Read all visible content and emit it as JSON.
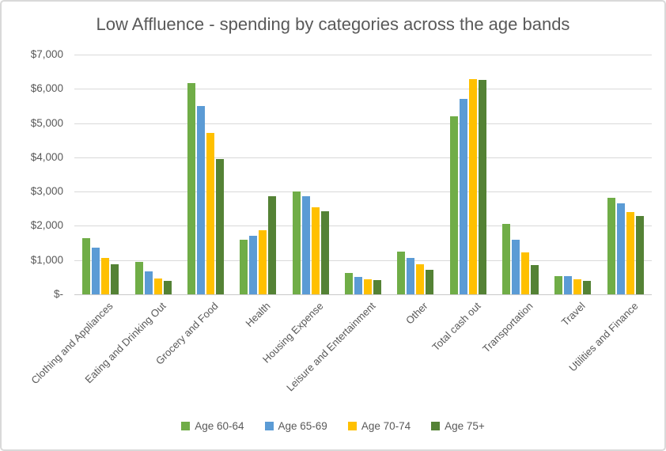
{
  "chart_data": {
    "type": "bar",
    "title": "Low Affluence - spending by categories across the age bands",
    "xlabel": "",
    "ylabel": "",
    "ylim": [
      0,
      7000
    ],
    "grid": "horizontal",
    "legend_position": "bottom",
    "yticks": [
      {
        "label": "$7,000",
        "value": 7000
      },
      {
        "label": "$6,000",
        "value": 6000
      },
      {
        "label": "$5,000",
        "value": 5000
      },
      {
        "label": "$4,000",
        "value": 4000
      },
      {
        "label": "$3,000",
        "value": 3000
      },
      {
        "label": "$2,000",
        "value": 2000
      },
      {
        "label": "$1,000",
        "value": 1000
      },
      {
        "label": "$-",
        "value": 0
      }
    ],
    "categories": [
      "Clothing and Appliances",
      "Eating and Drinking Out",
      "Grocery and Food",
      "Health",
      "Housing Expense",
      "Leisure and Entertainment",
      "Other",
      "Total cash out",
      "Transportation",
      "Travel",
      "Utilities and Finance"
    ],
    "series": [
      {
        "name": "Age 60-64",
        "color": "#70AD47",
        "values": [
          1630,
          950,
          6180,
          1600,
          3000,
          630,
          1250,
          5200,
          2060,
          540,
          2810
        ]
      },
      {
        "name": "Age 65-69",
        "color": "#5B9BD5",
        "values": [
          1360,
          660,
          5500,
          1720,
          2860,
          510,
          1060,
          5700,
          1600,
          530,
          2660
        ]
      },
      {
        "name": "Age 70-74",
        "color": "#FFC000",
        "values": [
          1070,
          470,
          4710,
          1870,
          2550,
          430,
          870,
          6290,
          1220,
          450,
          2400
        ]
      },
      {
        "name": "Age 75+",
        "color": "#548235",
        "values": [
          870,
          390,
          3950,
          2860,
          2420,
          410,
          710,
          6270,
          850,
          400,
          2290
        ]
      }
    ],
    "text_color": "#595959",
    "gridline_color": "#d9d9d9",
    "axis_line_color": "#c9c9c9"
  }
}
